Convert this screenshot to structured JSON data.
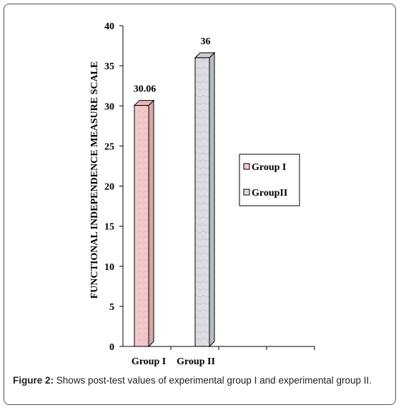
{
  "chart_data": {
    "type": "bar",
    "categories": [
      "Group I",
      "Group II"
    ],
    "values": [
      30.06,
      36
    ],
    "data_labels": [
      "30.06",
      "36"
    ],
    "ylabel": "FUNCTIONAL INDEPENDENCE MEASURE SCALE",
    "ylim": [
      0,
      40
    ],
    "yticks": [
      0,
      5,
      10,
      15,
      20,
      25,
      30,
      35,
      40
    ],
    "grid": false,
    "three_d": true,
    "legend": {
      "placement": "right",
      "entries": [
        "Group I",
        "GroupII"
      ]
    },
    "colors": {
      "group1_front": "#f2c9c9",
      "group1_side": "#d9a6a6",
      "group2_front": "#dcdde2",
      "group2_side": "#b9bbc2",
      "axis": "#000000"
    }
  },
  "caption": {
    "label": "Figure 2:",
    "text": " Shows post-test values of experimental group I and experimental group II."
  }
}
